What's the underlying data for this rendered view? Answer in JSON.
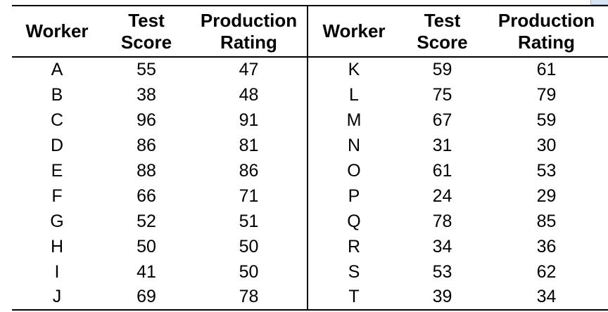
{
  "table": {
    "headers": {
      "worker": "Worker",
      "test_line1": "Test",
      "test_line2": "Score",
      "prod_line1": "Production",
      "prod_line2": "Rating"
    },
    "left_rows": [
      {
        "worker": "A",
        "test_score": "55",
        "production_rating": "47"
      },
      {
        "worker": "B",
        "test_score": "38",
        "production_rating": "48"
      },
      {
        "worker": "C",
        "test_score": "96",
        "production_rating": "91"
      },
      {
        "worker": "D",
        "test_score": "86",
        "production_rating": "81"
      },
      {
        "worker": "E",
        "test_score": "88",
        "production_rating": "86"
      },
      {
        "worker": "F",
        "test_score": "66",
        "production_rating": "71"
      },
      {
        "worker": "G",
        "test_score": "52",
        "production_rating": "51"
      },
      {
        "worker": "H",
        "test_score": "50",
        "production_rating": "50"
      },
      {
        "worker": "I",
        "test_score": "41",
        "production_rating": "50"
      },
      {
        "worker": "J",
        "test_score": "69",
        "production_rating": "78"
      }
    ],
    "right_rows": [
      {
        "worker": "K",
        "test_score": "59",
        "production_rating": "61"
      },
      {
        "worker": "L",
        "test_score": "75",
        "production_rating": "79"
      },
      {
        "worker": "M",
        "test_score": "67",
        "production_rating": "59"
      },
      {
        "worker": "N",
        "test_score": "31",
        "production_rating": "30"
      },
      {
        "worker": "O",
        "test_score": "61",
        "production_rating": "53"
      },
      {
        "worker": "P",
        "test_score": "24",
        "production_rating": "29"
      },
      {
        "worker": "Q",
        "test_score": "78",
        "production_rating": "85"
      },
      {
        "worker": "R",
        "test_score": "34",
        "production_rating": "36"
      },
      {
        "worker": "S",
        "test_score": "53",
        "production_rating": "62"
      },
      {
        "worker": "T",
        "test_score": "39",
        "production_rating": "34"
      }
    ]
  }
}
